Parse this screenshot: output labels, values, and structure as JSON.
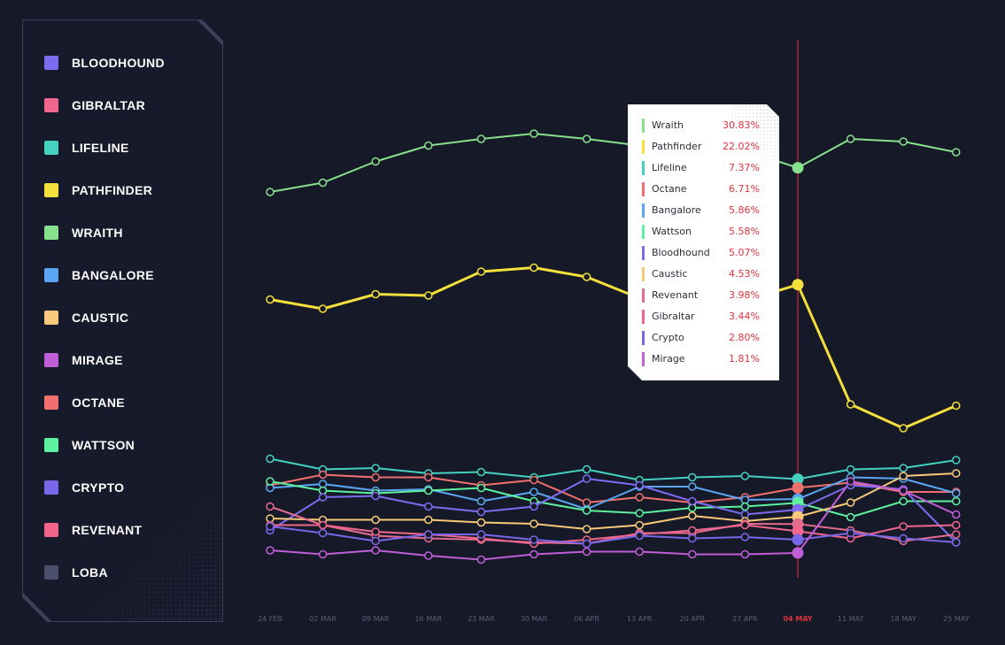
{
  "legend": [
    {
      "label": "BLOODHOUND",
      "color": "#7d6cf0"
    },
    {
      "label": "GIBRALTAR",
      "color": "#f0668f"
    },
    {
      "label": "LIFELINE",
      "color": "#44d1c0"
    },
    {
      "label": "PATHFINDER",
      "color": "#f4e03c"
    },
    {
      "label": "WRAITH",
      "color": "#87e08b"
    },
    {
      "label": "BANGALORE",
      "color": "#5aa6f2"
    },
    {
      "label": "CAUSTIC",
      "color": "#f8c97a"
    },
    {
      "label": "MIRAGE",
      "color": "#c05ed8"
    },
    {
      "label": "OCTANE",
      "color": "#f07070"
    },
    {
      "label": "WATTSON",
      "color": "#5ef2a0"
    },
    {
      "label": "CRYPTO",
      "color": "#7a66e8"
    },
    {
      "label": "REVENANT",
      "color": "#f2648a"
    },
    {
      "label": "LOBA",
      "color": "#4a4f6b"
    }
  ],
  "colors": {
    "background": "#161927",
    "axis_text": "#5a5f76",
    "highlight": "#e0323c",
    "tooltip_value": "#e0323c"
  },
  "tooltip": {
    "rows": [
      {
        "name": "Wraith",
        "value": "30.83%",
        "color": "#87e08b"
      },
      {
        "name": "Pathfinder",
        "value": "22.02%",
        "color": "#f4e03c"
      },
      {
        "name": "Lifeline",
        "value": "7.37%",
        "color": "#44d1c0"
      },
      {
        "name": "Octane",
        "value": "6.71%",
        "color": "#f07070"
      },
      {
        "name": "Bangalore",
        "value": "5.86%",
        "color": "#5aa6f2"
      },
      {
        "name": "Wattson",
        "value": "5.58%",
        "color": "#5ef2a0"
      },
      {
        "name": "Bloodhound",
        "value": "5.07%",
        "color": "#7d6cf0"
      },
      {
        "name": "Caustic",
        "value": "4.53%",
        "color": "#f8c97a"
      },
      {
        "name": "Revenant",
        "value": "3.98%",
        "color": "#e26b8e"
      },
      {
        "name": "Gibraltar",
        "value": "3.44%",
        "color": "#f0668f"
      },
      {
        "name": "Crypto",
        "value": "2.80%",
        "color": "#7a66e8"
      },
      {
        "name": "Mirage",
        "value": "1.81%",
        "color": "#c05ed8"
      }
    ]
  },
  "chart_data": {
    "type": "line",
    "x": [
      "24 FEB",
      "02 MAR",
      "09 MAR",
      "16 MAR",
      "23 MAR",
      "30 MAR",
      "06 APR",
      "13 APR",
      "20 APR",
      "27 APR",
      "04 MAY",
      "11 MAY",
      "18 MAY",
      "25 MAY"
    ],
    "highlighted_x": "04 MAY",
    "highlight_index": 10,
    "ylim": [
      0,
      40
    ],
    "grid": false,
    "legend_position": "left",
    "series": [
      {
        "name": "Wraith",
        "color": "#87e08b",
        "values": [
          29.0,
          29.7,
          31.3,
          32.5,
          33.0,
          33.4,
          33.0,
          32.5,
          32.3,
          32.1,
          30.83,
          33.0,
          32.8,
          32.0
        ]
      },
      {
        "name": "Pathfinder",
        "color": "#f4e03c",
        "values": [
          20.9,
          20.2,
          21.3,
          21.2,
          23.0,
          23.3,
          22.6,
          21.0,
          20.7,
          20.8,
          22.02,
          13.0,
          11.2,
          12.9
        ]
      },
      {
        "name": "Lifeline",
        "color": "#44d1c0",
        "values": [
          8.9,
          8.1,
          8.2,
          7.8,
          7.9,
          7.5,
          8.1,
          7.3,
          7.5,
          7.6,
          7.37,
          8.1,
          8.2,
          8.8
        ]
      },
      {
        "name": "Octane",
        "color": "#f07070",
        "values": [
          6.9,
          7.7,
          7.5,
          7.5,
          6.9,
          7.3,
          5.6,
          6.0,
          5.6,
          6.0,
          6.71,
          7.1,
          6.4,
          6.4
        ]
      },
      {
        "name": "Bangalore",
        "color": "#5aa6f2",
        "values": [
          6.7,
          7.0,
          6.5,
          6.6,
          5.7,
          6.4,
          5.1,
          6.8,
          6.8,
          5.8,
          5.86,
          7.5,
          7.4,
          6.3
        ]
      },
      {
        "name": "Wattson",
        "color": "#5ef2a0",
        "values": [
          7.2,
          6.5,
          6.3,
          6.5,
          6.7,
          5.7,
          5.0,
          4.8,
          5.2,
          5.3,
          5.58,
          4.5,
          5.7,
          5.7
        ]
      },
      {
        "name": "Bloodhound",
        "color": "#7d6cf0",
        "values": [
          3.5,
          6.0,
          6.1,
          5.3,
          4.9,
          5.3,
          7.4,
          6.9,
          5.7,
          4.7,
          5.07,
          6.9,
          6.6,
          2.6
        ]
      },
      {
        "name": "Caustic",
        "color": "#f8c97a",
        "values": [
          4.4,
          4.3,
          4.3,
          4.3,
          4.1,
          4.0,
          3.6,
          3.9,
          4.6,
          4.2,
          4.53,
          5.6,
          7.6,
          7.8
        ]
      },
      {
        "name": "Revenant",
        "color": "#e26b8e",
        "values": [
          5.3,
          3.9,
          3.1,
          2.9,
          2.8,
          2.6,
          2.5,
          3.3,
          3.3,
          4.0,
          3.98,
          3.5,
          2.7,
          3.2
        ]
      },
      {
        "name": "Gibraltar",
        "color": "#f0668f",
        "values": [
          3.9,
          3.9,
          3.4,
          3.2,
          2.9,
          2.5,
          2.8,
          3.2,
          3.5,
          3.9,
          3.44,
          2.9,
          3.8,
          3.9
        ]
      },
      {
        "name": "Crypto",
        "color": "#7a66e8",
        "values": [
          3.8,
          3.3,
          2.7,
          3.2,
          3.2,
          2.8,
          2.5,
          3.1,
          2.9,
          3.0,
          2.8,
          3.3,
          2.9,
          2.6
        ]
      },
      {
        "name": "Mirage",
        "color": "#c05ed8",
        "values": [
          2.0,
          1.7,
          2.0,
          1.6,
          1.3,
          1.7,
          1.9,
          1.9,
          1.7,
          1.7,
          1.81,
          7.2,
          6.5,
          4.7
        ]
      }
    ]
  }
}
